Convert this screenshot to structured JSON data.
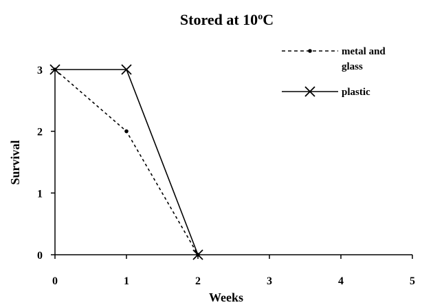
{
  "chart_data": {
    "type": "line",
    "title_main": "Stored at 10",
    "title_sup": "o",
    "title_end": "C",
    "xlabel": "Weeks",
    "ylabel": "Survival",
    "xlim": [
      0,
      5
    ],
    "ylim": [
      0,
      3
    ],
    "xticks": [
      "0",
      "1",
      "2",
      "3",
      "4",
      "5"
    ],
    "yticks": [
      "0",
      "1",
      "2",
      "3"
    ],
    "grid": false,
    "legend_position": "top-right",
    "series": [
      {
        "name": "metal and glass",
        "name_line1": "metal and",
        "name_line2": "glass",
        "x": [
          0,
          1,
          2
        ],
        "y": [
          3,
          2,
          0
        ],
        "style": "dashed",
        "marker": "dot",
        "color": "#000000"
      },
      {
        "name": "plastic",
        "x": [
          0,
          1,
          2
        ],
        "y": [
          3,
          3,
          0
        ],
        "style": "solid",
        "marker": "x",
        "color": "#000000"
      }
    ]
  }
}
